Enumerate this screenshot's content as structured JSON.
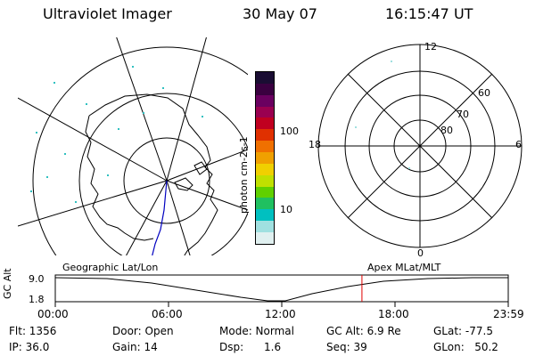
{
  "header": {
    "instrument": "Ultraviolet Imager",
    "date": "30 May 07",
    "time": "16:15:47 UT"
  },
  "colorbar": {
    "unit_label": "photon cm-2s-1",
    "ticks": [
      "100",
      "10"
    ],
    "colors": [
      "#1a0d33",
      "#3a0040",
      "#6a0060",
      "#9a0050",
      "#c00020",
      "#e03000",
      "#f07000",
      "#f0a000",
      "#f0d000",
      "#c0e000",
      "#60d000",
      "#20c060",
      "#00c0c0",
      "#a0e0e0",
      "#e0f0f0"
    ]
  },
  "geo_map": {
    "title": "Geographic Lat/Lon"
  },
  "polar_plot": {
    "title": "Apex MLat/MLT",
    "mlt_labels": {
      "top": "12",
      "left": "18",
      "right": "6",
      "bottom": "0"
    },
    "lat_labels": [
      "60",
      "70",
      "80"
    ]
  },
  "timeline": {
    "y_axis_label": "GC Alt",
    "y_ticks": [
      "9.0",
      "1.8"
    ],
    "x_ticks": [
      "00:00",
      "06:00",
      "12:00",
      "18:00",
      "23:59"
    ],
    "marker_time_fraction": 0.677,
    "marker_color": "#e00000"
  },
  "status": {
    "flt": "Flt: 1356",
    "ip": "IP: 36.0",
    "door": "Door: Open",
    "gain": "Gain: 14",
    "mode": "Mode: Normal",
    "dsp": "Dsp:      1.6",
    "gc_alt": "GC Alt: 6.9 Re",
    "seq": "Seq: 39",
    "glat": "GLat: -77.5",
    "glon": "GLon:   50.2"
  }
}
